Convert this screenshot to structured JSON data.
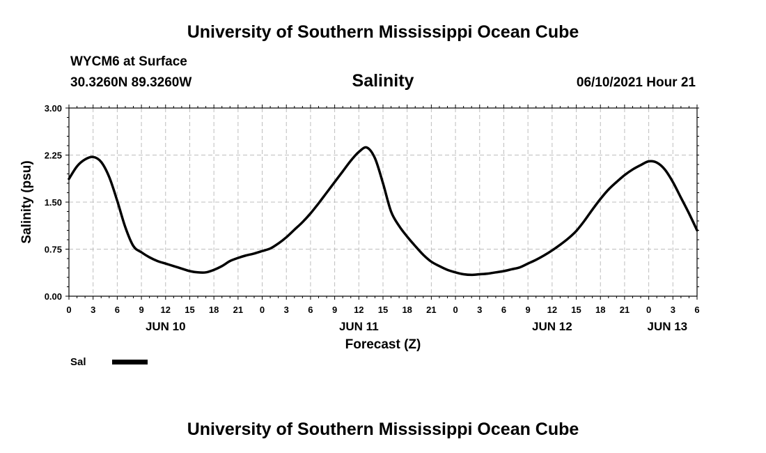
{
  "header": {
    "title_top": "University of Southern Mississippi Ocean Cube",
    "station": "WYCM6 at Surface",
    "coords": "30.3260N  89.3260W",
    "datetime": "06/10/2021 Hour 21",
    "title_bottom": "University of Southern Mississippi Ocean Cube"
  },
  "chart_data": {
    "type": "line",
    "title": "Salinity",
    "xlabel": "Forecast (Z)",
    "ylabel": "Salinity (psu)",
    "ylim": [
      0,
      3
    ],
    "xlim_hours": [
      0,
      78
    ],
    "grid": true,
    "y_ticks": [
      "0.00",
      "0.75",
      "1.50",
      "2.25",
      "3.00"
    ],
    "x_tick_labels": [
      "0",
      "3",
      "6",
      "9",
      "12",
      "15",
      "18",
      "21",
      "0",
      "3",
      "6",
      "9",
      "12",
      "15",
      "18",
      "21",
      "0",
      "3",
      "6",
      "9",
      "12",
      "15",
      "18",
      "21",
      "0",
      "3",
      "6"
    ],
    "day_labels": [
      {
        "label": "JUN 10",
        "hour": 12
      },
      {
        "label": "JUN 11",
        "hour": 36
      },
      {
        "label": "JUN 12",
        "hour": 60
      },
      {
        "label": "JUN 13",
        "hour": 75
      }
    ],
    "series": [
      {
        "name": "Sal",
        "color": "#000000",
        "x": [
          0,
          1,
          2,
          3,
          4,
          5,
          6,
          7,
          8,
          9,
          10,
          11,
          12,
          13,
          14,
          15,
          16,
          17,
          18,
          19,
          20,
          21,
          22,
          23,
          24,
          25,
          26,
          27,
          28,
          29,
          30,
          31,
          32,
          33,
          34,
          35,
          36,
          37,
          38,
          39,
          40,
          41,
          42,
          43,
          44,
          45,
          46,
          47,
          48,
          49,
          50,
          51,
          52,
          53,
          54,
          55,
          56,
          57,
          58,
          59,
          60,
          61,
          62,
          63,
          64,
          65,
          66,
          67,
          68,
          69,
          70,
          71,
          72,
          73,
          74,
          75,
          76,
          77,
          78
        ],
        "values": [
          1.87,
          2.07,
          2.18,
          2.22,
          2.14,
          1.9,
          1.52,
          1.1,
          0.8,
          0.7,
          0.62,
          0.56,
          0.52,
          0.48,
          0.44,
          0.4,
          0.38,
          0.38,
          0.42,
          0.48,
          0.56,
          0.61,
          0.65,
          0.68,
          0.72,
          0.76,
          0.84,
          0.94,
          1.06,
          1.18,
          1.32,
          1.48,
          1.65,
          1.82,
          1.99,
          2.16,
          2.3,
          2.37,
          2.2,
          1.8,
          1.35,
          1.12,
          0.95,
          0.8,
          0.66,
          0.55,
          0.48,
          0.42,
          0.38,
          0.35,
          0.34,
          0.35,
          0.36,
          0.38,
          0.4,
          0.43,
          0.46,
          0.52,
          0.58,
          0.65,
          0.73,
          0.82,
          0.92,
          1.04,
          1.2,
          1.38,
          1.55,
          1.7,
          1.82,
          1.93,
          2.02,
          2.09,
          2.15,
          2.13,
          2.02,
          1.82,
          1.57,
          1.32,
          1.05
        ]
      }
    ]
  },
  "legend": {
    "items": [
      {
        "label": "Sal",
        "color": "#000000"
      }
    ]
  }
}
